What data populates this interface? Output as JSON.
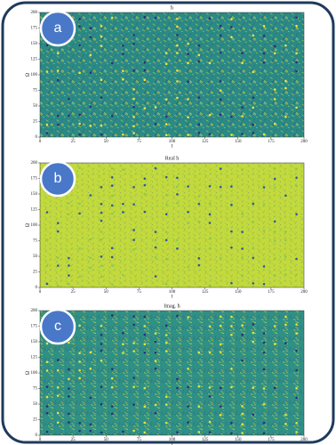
{
  "chart_data": [
    {
      "type": "heatmap",
      "panel_label": "a",
      "title": "h",
      "xlabel": "t",
      "ylabel": "Ω",
      "xlim": [
        0,
        200
      ],
      "ylim": [
        0,
        200
      ],
      "xticks": [
        0,
        25,
        50,
        75,
        100,
        125,
        150,
        175,
        200
      ],
      "yticks": [
        0,
        25,
        50,
        75,
        100,
        125,
        150,
        175,
        200
      ],
      "color": "#2a8a86",
      "accent_color": "#f2e53a",
      "dot_color": "#2b2f7a"
    },
    {
      "type": "heatmap",
      "panel_label": "b",
      "title": "Real h",
      "xlabel": "t",
      "ylabel": "Ω",
      "xlim": [
        0,
        200
      ],
      "ylim": [
        0,
        200
      ],
      "xticks": [
        0,
        25,
        50,
        75,
        100,
        125,
        150,
        175,
        200
      ],
      "yticks": [
        0,
        25,
        50,
        75,
        100,
        125,
        150,
        175,
        200
      ],
      "color": "#c4da3c",
      "accent_color": "#8cc94a",
      "dot_color": "#2f5a9a"
    },
    {
      "type": "heatmap",
      "panel_label": "c",
      "title": "Imag. h",
      "xlabel": "t",
      "ylabel": "Ω",
      "xlim": [
        0,
        200
      ],
      "ylim": [
        0,
        200
      ],
      "xticks": [
        0,
        25,
        50,
        75,
        100,
        125,
        150,
        175,
        200
      ],
      "yticks": [
        0,
        25,
        50,
        75,
        100,
        125,
        150,
        175,
        200
      ],
      "color": "#2f9186",
      "accent_color": "#e8e23c",
      "dot_color": "#2b2f7a"
    }
  ]
}
